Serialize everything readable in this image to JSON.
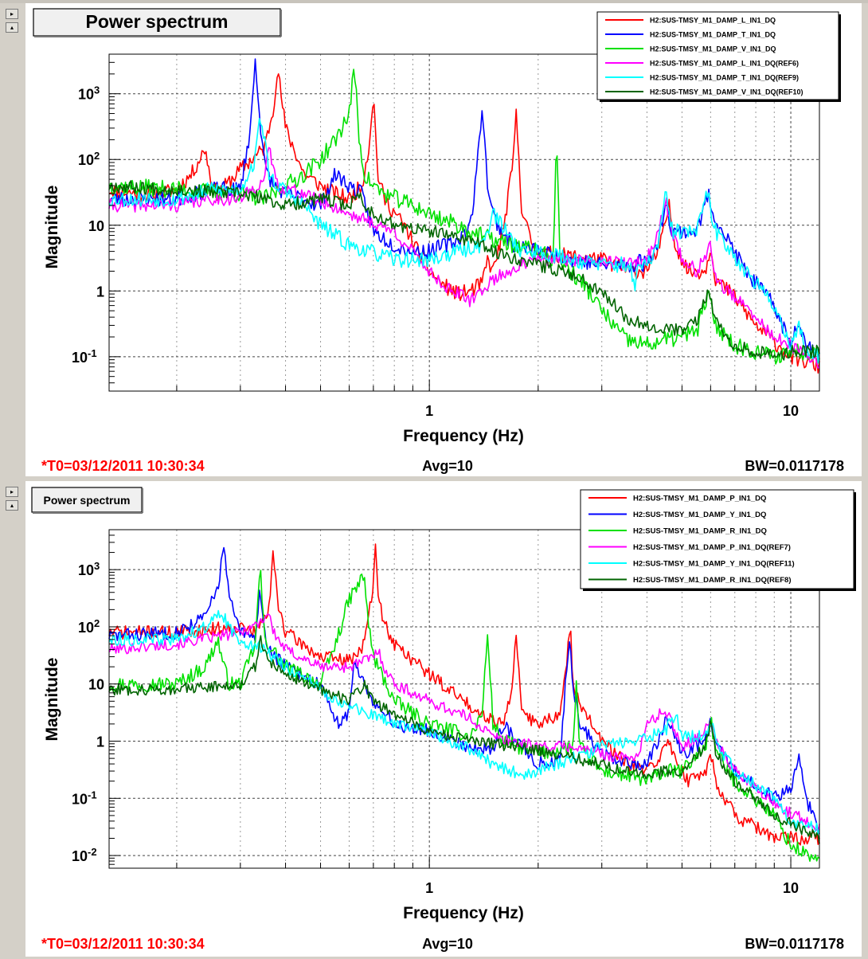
{
  "window": {
    "controls": [
      {
        "symbol": "▸"
      },
      {
        "symbol": "▴"
      },
      {
        "symbol": "▸"
      },
      {
        "symbol": "▴"
      }
    ]
  },
  "chart_data": [
    {
      "type": "line",
      "title": "Power spectrum",
      "xlabel": "Frequency (Hz)",
      "ylabel": "Magnitude",
      "xscale": "log",
      "yscale": "log",
      "xlim": [
        0.13,
        12
      ],
      "ylim": [
        0.03,
        4000
      ],
      "xticks_major": [
        1,
        10
      ],
      "xtick_labels": [
        "1",
        "10"
      ],
      "yticks_major": [
        0.1,
        1,
        10,
        100,
        1000
      ],
      "ytick_labels": [
        "10-1",
        "1",
        "10",
        "102",
        "103"
      ],
      "grid": true,
      "legend_position": "top-right",
      "footer": {
        "t0": "*T0=03/12/2011 10:30:34",
        "avg": "Avg=10",
        "bw": "BW=0.0117178"
      },
      "series": [
        {
          "name": "H2:SUS-TMSY_M1_DAMP_L_IN1_DQ",
          "color": "#ff0000",
          "seed": 11,
          "noise": 0.12,
          "x": [
            0.13,
            0.17,
            0.2,
            0.22,
            0.24,
            0.25,
            0.26,
            0.3,
            0.35,
            0.37,
            0.38,
            0.4,
            0.45,
            0.5,
            0.55,
            0.6,
            0.65,
            0.68,
            0.7,
            0.72,
            0.75,
            0.85,
            1.0,
            1.1,
            1.2,
            1.3,
            1.4,
            1.45,
            1.5,
            1.6,
            1.7,
            1.74,
            1.8,
            1.9,
            2.0,
            2.3,
            3.0,
            3.6,
            3.9,
            4.2,
            4.4,
            4.6,
            4.8,
            5.2,
            5.8,
            6.0,
            6.2,
            7.0,
            8.0,
            10.0,
            12.0
          ],
          "y": [
            35,
            28,
            35,
            60,
            150,
            40,
            30,
            70,
            150,
            600,
            2500,
            300,
            60,
            40,
            30,
            25,
            40,
            150,
            1000,
            60,
            25,
            10,
            2,
            1.2,
            0.9,
            1.0,
            1.3,
            3,
            2,
            8,
            80,
            500,
            20,
            6,
            4,
            3.5,
            3,
            2,
            2,
            3,
            6,
            20,
            5,
            2,
            2,
            5,
            1.5,
            0.8,
            0.3,
            0.1,
            0.07
          ]
        },
        {
          "name": "H2:SUS-TMSY_M1_DAMP_T_IN1_DQ",
          "color": "#0000ff",
          "seed": 23,
          "noise": 0.12,
          "x": [
            0.13,
            0.2,
            0.25,
            0.3,
            0.32,
            0.33,
            0.34,
            0.35,
            0.37,
            0.4,
            0.45,
            0.5,
            0.55,
            0.6,
            0.65,
            0.7,
            0.8,
            0.9,
            1.0,
            1.2,
            1.3,
            1.35,
            1.4,
            1.45,
            1.5,
            1.55,
            1.7,
            2.0,
            2.5,
            3.0,
            3.7,
            3.8,
            3.9,
            4.3,
            4.5,
            4.7,
            5.5,
            5.9,
            6.1,
            6.5,
            7.5,
            9.0,
            10.0,
            10.5,
            11.0,
            12.0
          ],
          "y": [
            25,
            25,
            35,
            35,
            300,
            3300,
            400,
            80,
            40,
            30,
            25,
            20,
            60,
            40,
            30,
            8,
            5,
            4,
            4,
            6,
            10,
            60,
            700,
            40,
            15,
            10,
            5,
            4,
            3,
            2.5,
            2.5,
            3,
            2.5,
            5,
            25,
            8,
            8,
            30,
            15,
            8,
            2,
            0.6,
            0.15,
            0.4,
            0.15,
            0.12
          ]
        },
        {
          "name": "H2:SUS-TMSY_M1_DAMP_V_IN1_DQ",
          "color": "#00e000",
          "seed": 37,
          "noise": 0.13,
          "x": [
            0.13,
            0.2,
            0.3,
            0.35,
            0.4,
            0.45,
            0.5,
            0.55,
            0.6,
            0.62,
            0.64,
            0.66,
            0.7,
            0.75,
            0.9,
            1.0,
            1.2,
            1.3,
            1.5,
            1.7,
            2.0,
            2.2,
            2.25,
            2.3,
            2.35,
            2.45,
            2.7,
            3.0,
            3.5,
            4.0,
            4.5,
            5.0,
            5.5,
            5.9,
            6.0,
            6.2,
            7.0,
            9.0,
            10.0,
            12.0
          ],
          "y": [
            40,
            35,
            30,
            25,
            40,
            60,
            100,
            200,
            500,
            2500,
            200,
            60,
            40,
            30,
            20,
            15,
            10,
            8,
            6,
            5,
            4,
            3,
            200,
            3,
            2.5,
            2,
            1.2,
            0.5,
            0.18,
            0.15,
            0.18,
            0.2,
            0.25,
            0.9,
            0.6,
            0.3,
            0.15,
            0.1,
            0.12,
            0.12
          ]
        },
        {
          "name": "H2:SUS-TMSY_M1_DAMP_L_IN1_DQ(REF6)",
          "color": "#ff00ff",
          "seed": 41,
          "noise": 0.1,
          "x": [
            0.13,
            0.2,
            0.25,
            0.3,
            0.35,
            0.36,
            0.37,
            0.38,
            0.45,
            0.6,
            0.8,
            1.0,
            1.1,
            1.2,
            1.3,
            1.5,
            1.8,
            2.0,
            2.5,
            3.0,
            3.5,
            4.0,
            4.3,
            4.5,
            4.7,
            5.0,
            5.5,
            6.0,
            6.2,
            7.0,
            9.0,
            12.0
          ],
          "y": [
            20,
            20,
            25,
            25,
            50,
            150,
            80,
            40,
            30,
            15,
            8,
            2,
            1.2,
            0.9,
            0.7,
            1.5,
            2.5,
            3,
            3,
            3,
            2.5,
            3,
            8,
            25,
            8,
            3,
            2,
            5,
            1.5,
            0.8,
            0.2,
            0.08
          ]
        },
        {
          "name": "H2:SUS-TMSY_M1_DAMP_T_IN1_DQ(REF9)",
          "color": "#00ffff",
          "seed": 53,
          "noise": 0.12,
          "x": [
            0.13,
            0.2,
            0.25,
            0.3,
            0.33,
            0.34,
            0.35,
            0.36,
            0.38,
            0.45,
            0.5,
            0.6,
            0.8,
            1.0,
            1.2,
            1.4,
            1.5,
            1.7,
            1.8,
            2.0,
            2.5,
            3.0,
            3.6,
            3.7,
            3.8,
            4.0,
            4.3,
            4.5,
            4.7,
            5.5,
            5.9,
            6.0,
            6.2,
            6.5,
            7.5,
            9.0,
            10.0,
            10.5,
            11.0,
            12.0
          ],
          "y": [
            25,
            25,
            35,
            35,
            100,
            500,
            200,
            60,
            40,
            20,
            10,
            5,
            3,
            3,
            4,
            5,
            15,
            6,
            4,
            4,
            3,
            2.5,
            2.5,
            1,
            2.5,
            2.5,
            5,
            30,
            8,
            8,
            35,
            15,
            8,
            6,
            2,
            0.6,
            0.15,
            0.3,
            0.12,
            0.1
          ]
        },
        {
          "name": "H2:SUS-TMSY_M1_DAMP_V_IN1_DQ(REF10)",
          "color": "#006400",
          "seed": 67,
          "noise": 0.1,
          "x": [
            0.13,
            0.2,
            0.3,
            0.35,
            0.4,
            0.5,
            0.6,
            0.64,
            0.66,
            0.7,
            0.8,
            1.0,
            1.3,
            1.5,
            2.0,
            2.5,
            3.0,
            3.5,
            4.0,
            5.0,
            5.5,
            5.9,
            6.0,
            6.2,
            7.0,
            9.0,
            10.0,
            12.0
          ],
          "y": [
            40,
            35,
            30,
            25,
            20,
            25,
            20,
            30,
            20,
            15,
            10,
            8,
            6,
            4,
            2.5,
            1.8,
            1.0,
            0.4,
            0.3,
            0.25,
            0.35,
            1.0,
            0.7,
            0.35,
            0.15,
            0.1,
            0.12,
            0.12
          ]
        }
      ]
    },
    {
      "type": "line",
      "title": "Power spectrum",
      "xlabel": "Frequency (Hz)",
      "ylabel": "Magnitude",
      "xscale": "log",
      "yscale": "log",
      "xlim": [
        0.13,
        12
      ],
      "ylim": [
        0.006,
        5000
      ],
      "xticks_major": [
        1,
        10
      ],
      "xtick_labels": [
        "1",
        "10"
      ],
      "yticks_major": [
        0.01,
        0.1,
        1,
        10,
        100,
        1000
      ],
      "ytick_labels": [
        "10-2",
        "10-1",
        "1",
        "10",
        "102",
        "103"
      ],
      "grid": true,
      "legend_position": "top-right",
      "footer": {
        "t0": "*T0=03/12/2011 10:30:34",
        "avg": "Avg=10",
        "bw": "BW=0.0117178"
      },
      "series": [
        {
          "name": "H2:SUS-TMSY_M1_DAMP_P_IN1_DQ",
          "color": "#ff0000",
          "seed": 71,
          "noise": 0.12,
          "x": [
            0.13,
            0.2,
            0.3,
            0.33,
            0.36,
            0.37,
            0.38,
            0.4,
            0.5,
            0.6,
            0.66,
            0.7,
            0.71,
            0.72,
            0.76,
            0.8,
            1.0,
            1.2,
            1.4,
            1.6,
            1.7,
            1.74,
            1.8,
            2.0,
            2.3,
            2.4,
            2.45,
            2.5,
            2.7,
            3.0,
            3.5,
            4.0,
            4.4,
            4.6,
            4.8,
            5.2,
            5.8,
            6.0,
            6.2,
            7.0,
            9.0,
            12.0
          ],
          "y": [
            80,
            80,
            100,
            80,
            200,
            2000,
            300,
            80,
            30,
            25,
            50,
            500,
            4000,
            300,
            100,
            50,
            15,
            6,
            3,
            2,
            10,
            80,
            3,
            2,
            3,
            20,
            130,
            10,
            3,
            1,
            0.4,
            0.3,
            0.6,
            1.0,
            0.5,
            0.2,
            0.3,
            0.6,
            0.2,
            0.05,
            0.02,
            0.02
          ]
        },
        {
          "name": "H2:SUS-TMSY_M1_DAMP_Y_IN1_DQ",
          "color": "#0000ff",
          "seed": 83,
          "noise": 0.12,
          "x": [
            0.13,
            0.2,
            0.24,
            0.26,
            0.27,
            0.28,
            0.3,
            0.33,
            0.34,
            0.35,
            0.36,
            0.4,
            0.5,
            0.55,
            0.6,
            0.62,
            0.7,
            0.8,
            1.0,
            1.3,
            1.5,
            1.6,
            1.8,
            2.0,
            2.3,
            2.4,
            2.45,
            2.5,
            2.6,
            3.0,
            3.5,
            4.0,
            4.4,
            4.5,
            4.7,
            5.0,
            5.8,
            6.0,
            6.2,
            7.0,
            9.0,
            10.0,
            10.5,
            11.0,
            12.0
          ],
          "y": [
            70,
            80,
            150,
            500,
            2600,
            300,
            80,
            60,
            500,
            80,
            40,
            20,
            10,
            2,
            3,
            25,
            5,
            2,
            1.5,
            0.8,
            0.7,
            2,
            0.8,
            0.4,
            0.5,
            20,
            50,
            10,
            2,
            0.6,
            0.4,
            0.4,
            1.5,
            3,
            1.5,
            0.6,
            1.0,
            2.5,
            0.8,
            0.3,
            0.1,
            0.15,
            0.6,
            0.1,
            0.03
          ]
        },
        {
          "name": "H2:SUS-TMSY_M1_DAMP_R_IN1_DQ",
          "color": "#00e000",
          "seed": 97,
          "noise": 0.13,
          "x": [
            0.13,
            0.2,
            0.24,
            0.26,
            0.27,
            0.28,
            0.3,
            0.33,
            0.34,
            0.35,
            0.4,
            0.5,
            0.55,
            0.6,
            0.66,
            0.68,
            0.7,
            0.8,
            1.0,
            1.3,
            1.4,
            1.45,
            1.5,
            1.6,
            2.0,
            2.5,
            2.55,
            2.6,
            3.0,
            3.5,
            4.0,
            4.5,
            5.0,
            5.8,
            6.0,
            6.2,
            7.0,
            9.0,
            10.0,
            12.0
          ],
          "y": [
            10,
            10,
            20,
            60,
            20,
            10,
            10,
            50,
            1200,
            60,
            20,
            10,
            50,
            300,
            800,
            100,
            30,
            5,
            2,
            1.2,
            3,
            80,
            2,
            1,
            0.6,
            0.8,
            10,
            0.8,
            0.3,
            0.25,
            0.2,
            0.3,
            0.3,
            0.8,
            2.5,
            0.7,
            0.2,
            0.05,
            0.015,
            0.008
          ]
        },
        {
          "name": "H2:SUS-TMSY_M1_DAMP_P_IN1_DQ(REF7)",
          "color": "#ff00ff",
          "seed": 101,
          "noise": 0.1,
          "x": [
            0.13,
            0.2,
            0.3,
            0.34,
            0.36,
            0.37,
            0.4,
            0.5,
            0.6,
            0.7,
            0.72,
            0.75,
            0.8,
            1.0,
            1.3,
            1.5,
            2.0,
            2.5,
            3.0,
            3.5,
            3.8,
            4.0,
            4.5,
            4.8,
            5.0,
            5.8,
            6.0,
            6.2,
            7.0,
            9.0,
            12.0
          ],
          "y": [
            40,
            50,
            80,
            120,
            180,
            80,
            40,
            20,
            20,
            30,
            40,
            20,
            10,
            5,
            2.5,
            1.2,
            0.8,
            0.8,
            0.6,
            0.5,
            0.6,
            2.0,
            3.5,
            1.5,
            0.8,
            1.5,
            2.5,
            1.0,
            0.3,
            0.08,
            0.03
          ]
        },
        {
          "name": "H2:SUS-TMSY_M1_DAMP_Y_IN1_DQ(REF11)",
          "color": "#00ffff",
          "seed": 113,
          "noise": 0.11,
          "x": [
            0.13,
            0.2,
            0.24,
            0.26,
            0.27,
            0.28,
            0.3,
            0.35,
            0.4,
            0.5,
            0.6,
            0.8,
            1.0,
            1.3,
            1.5,
            1.8,
            2.0,
            2.5,
            3.0,
            3.5,
            4.0,
            4.5,
            4.8,
            5.0,
            5.8,
            6.0,
            6.2,
            7.0,
            9.0,
            10.0,
            12.0
          ],
          "y": [
            60,
            60,
            100,
            150,
            150,
            90,
            60,
            40,
            20,
            8,
            4,
            2,
            1.5,
            0.7,
            0.4,
            0.25,
            0.3,
            0.5,
            0.8,
            1.0,
            1.2,
            1.5,
            3,
            1.2,
            1.2,
            2.5,
            1.0,
            0.3,
            0.1,
            0.04,
            0.03
          ]
        },
        {
          "name": "H2:SUS-TMSY_M1_DAMP_R_IN1_DQ(REF8)",
          "color": "#006400",
          "seed": 127,
          "noise": 0.1,
          "x": [
            0.13,
            0.2,
            0.3,
            0.33,
            0.34,
            0.36,
            0.4,
            0.5,
            0.6,
            0.66,
            0.7,
            0.8,
            1.0,
            1.3,
            1.5,
            2.0,
            2.5,
            3.0,
            3.5,
            4.0,
            4.5,
            5.0,
            5.8,
            6.0,
            6.2,
            7.0,
            9.0,
            12.0
          ],
          "y": [
            8,
            8,
            10,
            20,
            60,
            25,
            15,
            8,
            5,
            10,
            5,
            3,
            1.5,
            1.0,
            0.9,
            0.7,
            0.5,
            0.4,
            0.3,
            0.25,
            0.3,
            0.3,
            0.8,
            2.0,
            0.6,
            0.2,
            0.05,
            0.02
          ]
        }
      ]
    }
  ]
}
